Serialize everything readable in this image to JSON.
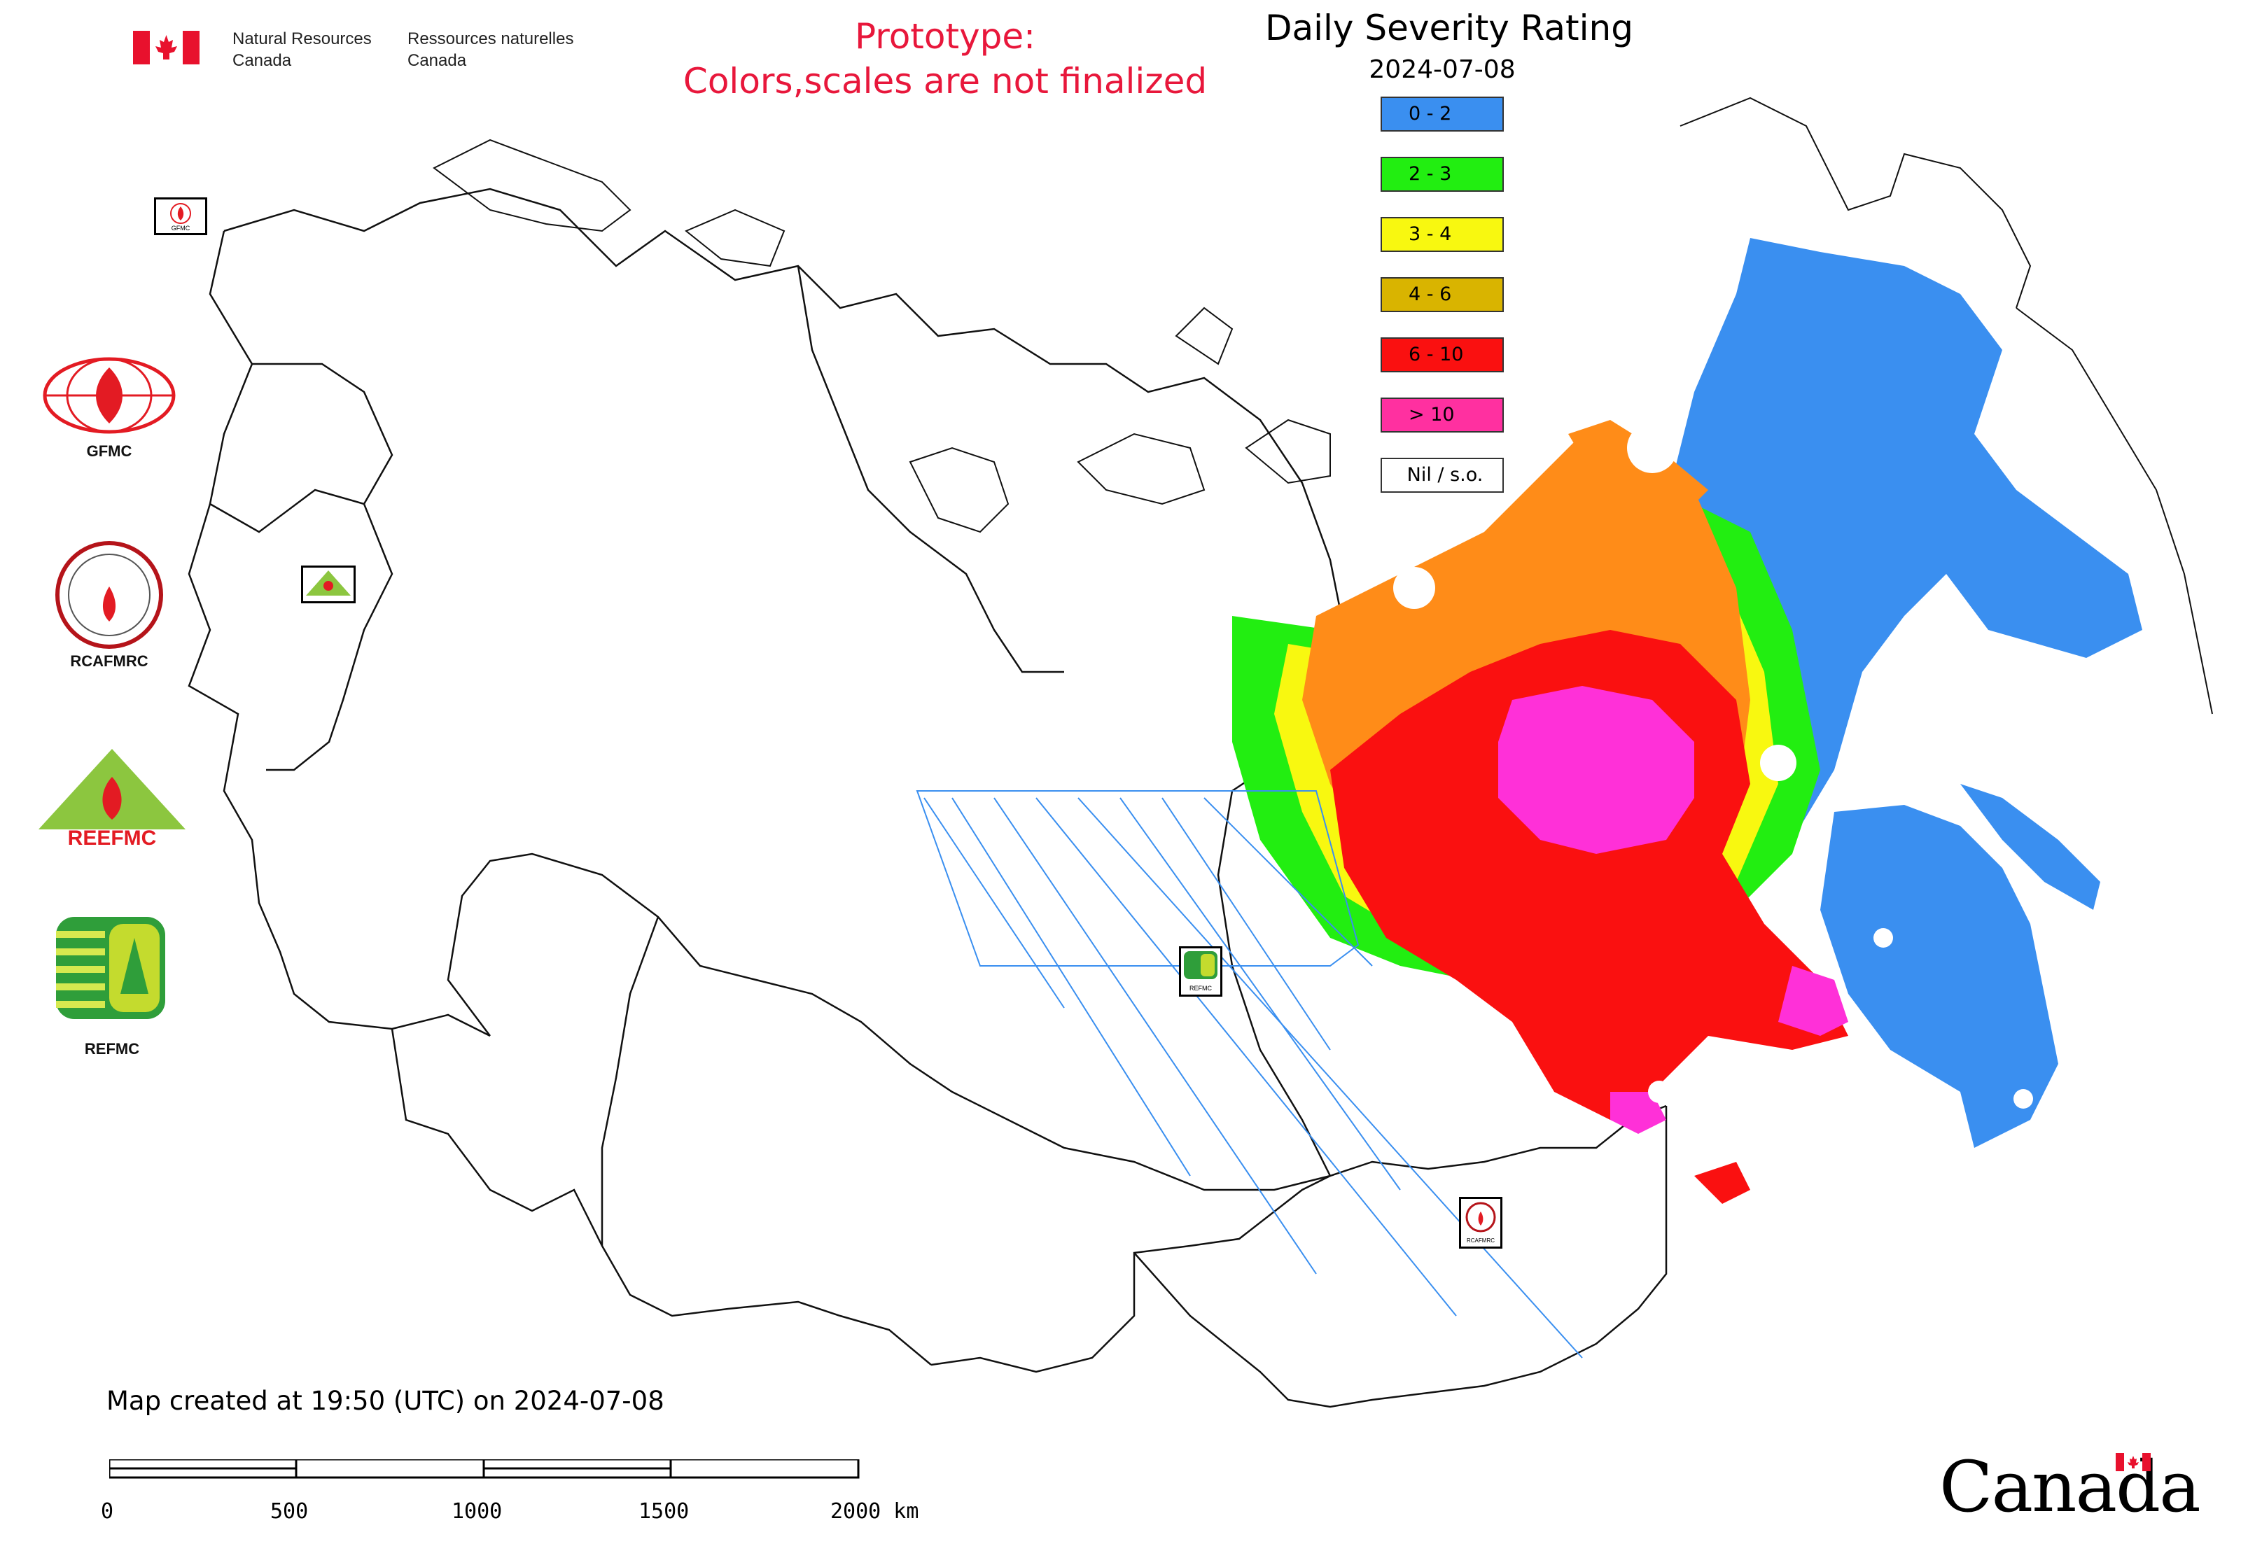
{
  "header": {
    "dept_en_line1": "Natural Resources",
    "dept_en_line2": "Canada",
    "dept_fr_line1": "Ressources naturelles",
    "dept_fr_line2": "Canada",
    "prototype_line1": "Prototype:",
    "prototype_line2": "Colors,scales are not finalized"
  },
  "map": {
    "title": "Daily Severity Rating",
    "date": "2024-07-08",
    "legend": [
      {
        "label": "0 - 2",
        "color": "#3a8ff0"
      },
      {
        "label": "2 - 3",
        "color": "#22ee11"
      },
      {
        "label": "3 - 4",
        "color": "#f8f810"
      },
      {
        "label": "4 - 6",
        "color": "#d9b400"
      },
      {
        "label": "6 - 10",
        "color": "#fa1010"
      },
      {
        "label": "> 10",
        "color": "#ff30a0"
      },
      {
        "label": "Nil / s.o.",
        "color": "#ffffff"
      }
    ]
  },
  "logos": {
    "gfmc": "GFMC",
    "rcafmrc": "RCAFMRC",
    "reefmc": "REEFMC",
    "refmc": "REFMC",
    "mini_gfmc": "GFMC",
    "mini_refmc": "REFMC",
    "mini_rcafmrc": "RCAFMRC"
  },
  "footer": {
    "created": "Map created at 19:50 (UTC) on 2024-07-08",
    "scale_labels": [
      "0",
      "500",
      "1000",
      "1500",
      "2000 km"
    ],
    "wordmark": "Canada"
  },
  "colors": {
    "prototype_red": "#e8173b",
    "flag_red": "#e8112d"
  }
}
